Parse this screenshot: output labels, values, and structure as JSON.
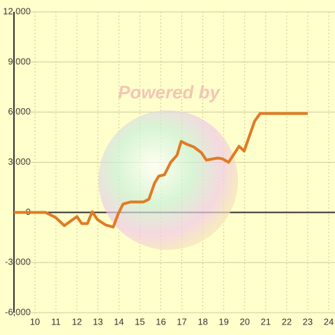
{
  "chart_data": {
    "type": "line",
    "watermark": "Powered by",
    "x": [
      9,
      10.5,
      10.97,
      11.4,
      12,
      12.23,
      12.5,
      12.73,
      12.97,
      13.37,
      13.73,
      13.97,
      14.2,
      14.57,
      15.17,
      15.43,
      15.7,
      15.9,
      16.17,
      16.47,
      16.77,
      16.97,
      17.23,
      17.57,
      17.93,
      18.17,
      18.7,
      18.93,
      19.23,
      19.73,
      19.97,
      20.2,
      20.47,
      20.73,
      23
    ],
    "values": [
      0,
      0,
      -290,
      -790,
      -250,
      -670,
      -670,
      40,
      -420,
      -750,
      -875,
      -80,
      500,
      625,
      625,
      790,
      1750,
      2170,
      2250,
      3000,
      3420,
      4250,
      4080,
      3920,
      3580,
      3130,
      3250,
      3210,
      3000,
      3960,
      3670,
      4500,
      5460,
      5920,
      5920
    ],
    "color": "#e07b24",
    "xlim": [
      9,
      24.3
    ],
    "xticks": [
      10,
      11,
      12,
      13,
      14,
      15,
      16,
      17,
      18,
      19,
      20,
      21,
      22,
      23,
      24
    ],
    "ylim": [
      -6000,
      12000
    ],
    "yticks": [
      {
        "value": -6000,
        "label": "-6,000"
      },
      {
        "value": -3000,
        "label": "-3,000"
      },
      0,
      {
        "value": 3000,
        "label": "3,000"
      },
      {
        "value": 6000,
        "label": "6,000"
      },
      {
        "value": 9000,
        "label": "9,000"
      },
      {
        "value": 12000,
        "label": "12,000"
      }
    ],
    "grid": true
  }
}
